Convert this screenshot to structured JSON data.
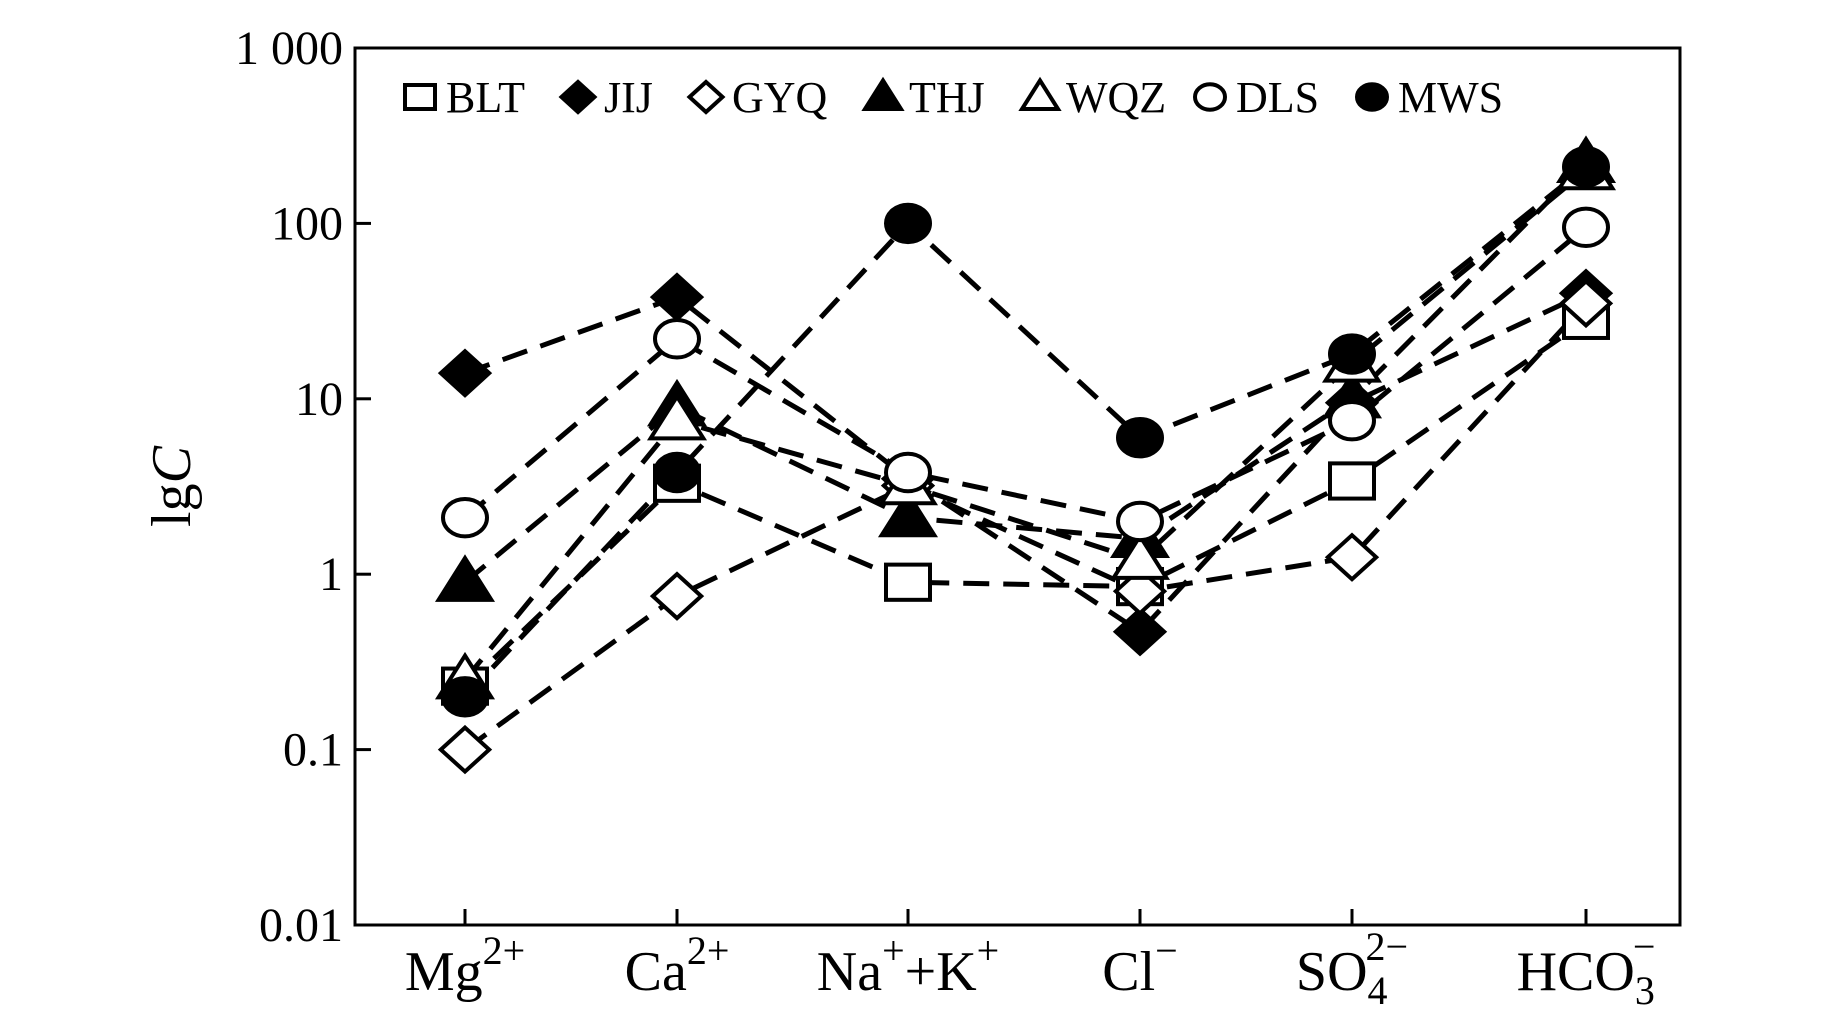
{
  "chart_data": {
    "type": "line",
    "ylabel": "lgC",
    "yscale": "log",
    "ylim": [
      0.01,
      1000
    ],
    "ytick_labels": [
      "0.01",
      "0.1",
      "1",
      "10",
      "100",
      "1 000"
    ],
    "yticks": [
      0.01,
      0.1,
      1,
      10,
      100,
      1000
    ],
    "categories": [
      {
        "base": "Mg",
        "sup": "2+",
        "sub": ""
      },
      {
        "base": "Ca",
        "sup": "2+",
        "sub": ""
      },
      {
        "base": "Na",
        "sup": "+",
        "tail": "+K",
        "tailsup": "+",
        "sub": ""
      },
      {
        "base": "Cl",
        "sup": "−",
        "sub": ""
      },
      {
        "base": "SO",
        "sup": "2−",
        "sub": "4"
      },
      {
        "base": "HCO",
        "sup": "−",
        "sub": "3"
      }
    ],
    "legend_position": "top",
    "line_style": "dashed",
    "grid": false,
    "series": [
      {
        "name": "BLT",
        "marker": "square-open",
        "values": [
          0.23,
          3.3,
          0.9,
          0.85,
          3.4,
          28
        ]
      },
      {
        "name": "JIJ",
        "marker": "diamond-filled",
        "values": [
          14,
          38,
          3.5,
          0.47,
          9.5,
          40
        ]
      },
      {
        "name": "GYQ",
        "marker": "diamond-open",
        "values": [
          0.1,
          0.75,
          3.2,
          0.8,
          1.25,
          35
        ]
      },
      {
        "name": "THJ",
        "marker": "triangle-filled",
        "values": [
          0.9,
          9,
          2.1,
          1.6,
          10,
          220
        ]
      },
      {
        "name": "WQZ",
        "marker": "triangle-open",
        "values": [
          0.25,
          7.5,
          3.2,
          1.2,
          16,
          200
        ]
      },
      {
        "name": "DLS",
        "marker": "circle-open",
        "values": [
          2.1,
          22,
          3.8,
          2.0,
          7.5,
          95
        ]
      },
      {
        "name": "MWS",
        "marker": "circle-filled",
        "values": [
          0.2,
          3.8,
          100,
          6.0,
          18,
          210
        ]
      }
    ]
  }
}
